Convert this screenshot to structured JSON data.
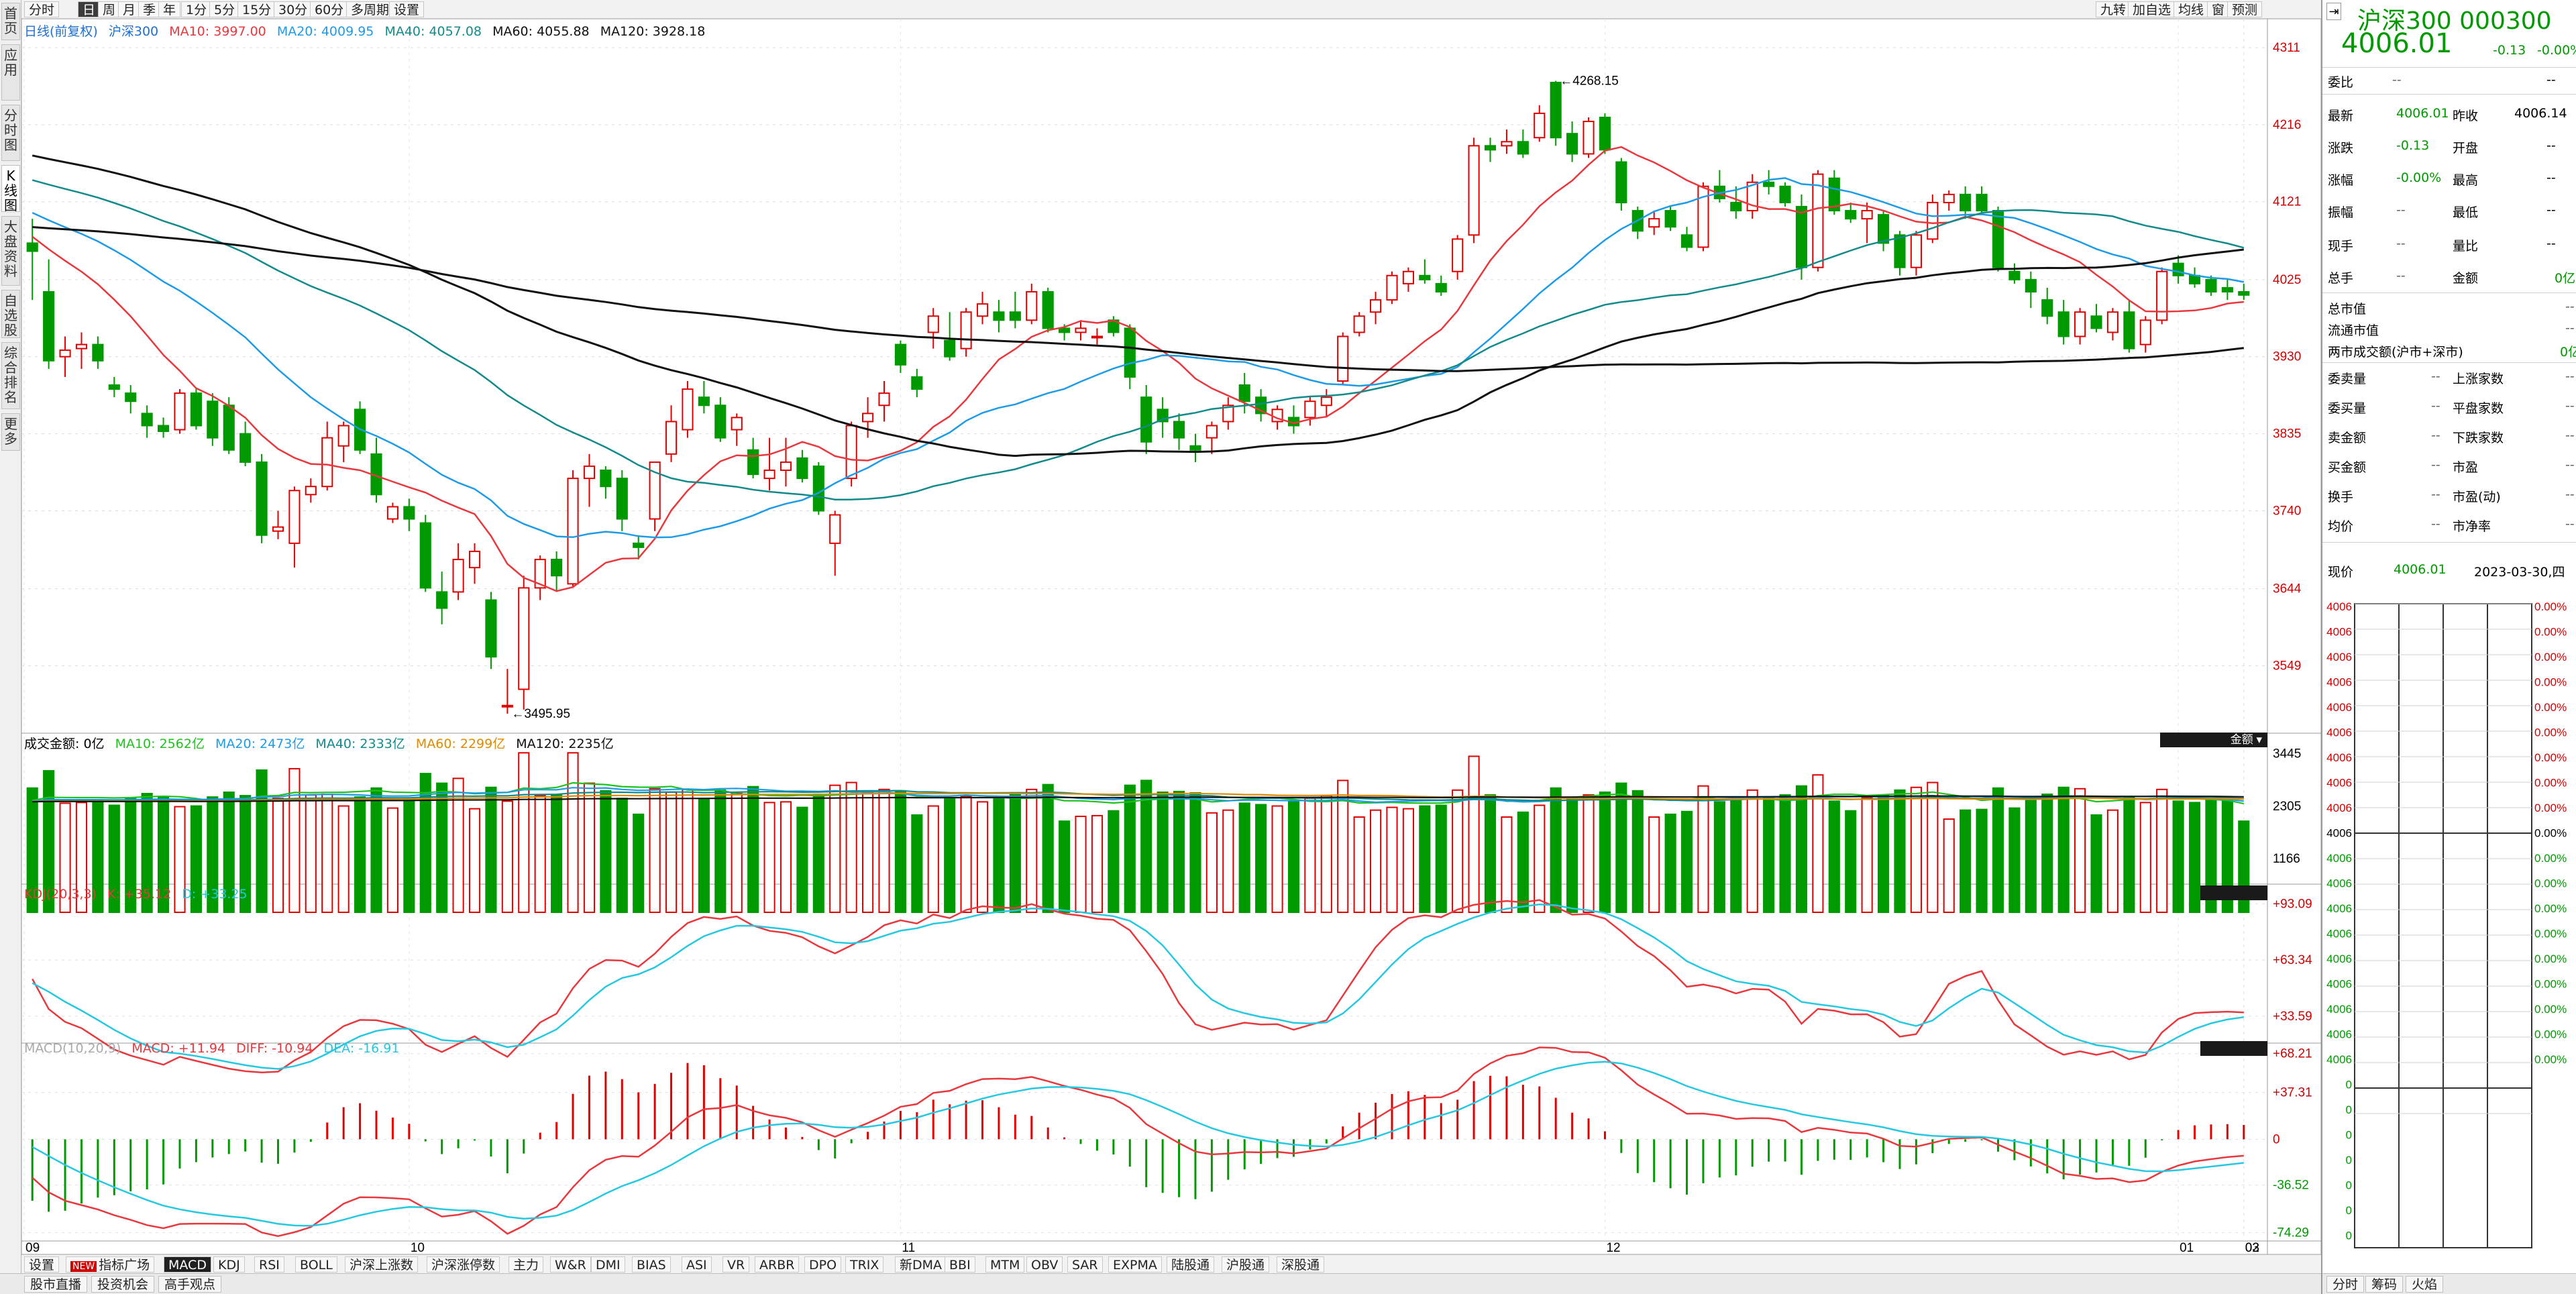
{
  "left_nav": [
    "首页",
    "应用",
    "分时图",
    "K线图",
    "大盘资料",
    "自选股",
    "综合排名",
    "更多"
  ],
  "toolbar": {
    "periods": [
      "分时",
      "日",
      "周",
      "月",
      "季",
      "年",
      "1分",
      "5分",
      "15分",
      "30分",
      "60分",
      "多周期",
      "设置"
    ],
    "active_period": "日",
    "right_buttons": [
      "九转",
      "加自选",
      "均线",
      "窗",
      "预测"
    ]
  },
  "main_legend": {
    "period_label": "日线(前复权)",
    "name": "沪深300",
    "ma10": "MA10: 3997.00",
    "ma20": "MA20: 4009.95",
    "ma40": "MA40: 4057.08",
    "ma60": "MA60: 4055.88",
    "ma120": "MA120: 3928.18"
  },
  "price_axis": [
    "4311",
    "4216",
    "4121",
    "4025",
    "3930",
    "3835",
    "3740",
    "3644",
    "3549"
  ],
  "annotations": {
    "high": "4268.15",
    "low": "3495.95"
  },
  "date_axis": [
    "09",
    "10",
    "11",
    "12",
    "01",
    "02",
    "03"
  ],
  "volume_legend": {
    "label": "成交金额: 0亿",
    "ma10": "MA10: 2562亿",
    "ma20": "MA20: 2473亿",
    "ma40": "MA40: 2333亿",
    "ma60": "MA60: 2299亿",
    "ma120": "MA120: 2235亿",
    "selector": "金额"
  },
  "volume_axis": [
    "3445",
    "2305",
    "1166"
  ],
  "kdj_legend": {
    "label": "KDJ(20,3,3)",
    "k": "K: +35.12",
    "d": "D: +33.25"
  },
  "kdj_axis": [
    "+93.09",
    "+63.34",
    "+33.59"
  ],
  "macd_legend": {
    "label": "MACD(10,20,9)",
    "macd": "MACD: +11.94",
    "diff": "DIFF: -10.94",
    "dea": "DEA: -16.91"
  },
  "macd_axis": [
    "+68.21",
    "+37.31",
    "0",
    "-36.52",
    "-74.29"
  ],
  "indicator_tabs": [
    "设置",
    "指标广场",
    "MACD",
    "KDJ",
    "RSI",
    "BOLL",
    "沪深上涨数",
    "沪深涨停数",
    "主力",
    "W&R",
    "DMI",
    "BIAS",
    "ASI",
    "VR",
    "ARBR",
    "DPO",
    "TRIX",
    "新DMA",
    "BBI",
    "MTM",
    "OBV",
    "SAR",
    "EXPMA",
    "陆股通",
    "沪股通",
    "深股通"
  ],
  "indicator_new_badge": "NEW",
  "active_indicator": "MACD",
  "bottom_tabs": [
    "股市直播",
    "投资机会",
    "高手观点"
  ],
  "quote": {
    "title": "沪深300 000300",
    "price": "4006.01",
    "change": "-0.13",
    "change_pct": "-0.00%",
    "rows_left": [
      {
        "label": "委比",
        "value": "--"
      },
      {
        "label": "最新",
        "value": "4006.01"
      },
      {
        "label": "涨跌",
        "value": "-0.13"
      },
      {
        "label": "涨幅",
        "value": "-0.00%"
      },
      {
        "label": "振幅",
        "value": "--"
      },
      {
        "label": "现手",
        "value": "--"
      },
      {
        "label": "总手",
        "value": "--"
      }
    ],
    "rows_right": [
      {
        "label": "",
        "value": "--"
      },
      {
        "label": "昨收",
        "value": "4006.14"
      },
      {
        "label": "开盘",
        "value": "--"
      },
      {
        "label": "最高",
        "value": "--"
      },
      {
        "label": "最低",
        "value": "--"
      },
      {
        "label": "量比",
        "value": "--"
      },
      {
        "label": "金额",
        "value": "0亿"
      }
    ],
    "cap_rows": [
      {
        "label": "总市值",
        "value": "--"
      },
      {
        "label": "流通市值",
        "value": "--"
      },
      {
        "label": "两市成交额(沪市+深市)",
        "value": "0亿"
      }
    ],
    "stat_left": [
      {
        "label": "委卖量",
        "value": "--"
      },
      {
        "label": "委买量",
        "value": "--"
      },
      {
        "label": "卖金额",
        "value": "--"
      },
      {
        "label": "买金额",
        "value": "--"
      },
      {
        "label": "换手",
        "value": "--"
      },
      {
        "label": "均价",
        "value": "--"
      }
    ],
    "stat_right": [
      {
        "label": "上涨家数",
        "value": "--"
      },
      {
        "label": "平盘家数",
        "value": "--"
      },
      {
        "label": "下跌家数",
        "value": "--"
      },
      {
        "label": "市盈",
        "value": "--"
      },
      {
        "label": "市盈(动)",
        "value": "--"
      },
      {
        "label": "市净率",
        "value": "--"
      }
    ],
    "now_label": "现价",
    "now_price": "4006.01",
    "now_date": "2023-03-30,四",
    "mini_price": "4006",
    "mini_pct": "0.00%",
    "mini_zero": "0",
    "panel_tabs": [
      "分时",
      "筹码",
      "火焰"
    ]
  },
  "colors": {
    "up": "#e00000",
    "down": "#009900",
    "ma10": "#e8383d",
    "ma20": "#1e9be6",
    "ma40": "#138a8a",
    "ma60": "#111111",
    "ma120": "#111111",
    "k": "#e8383d",
    "d": "#25c8e0"
  },
  "chart_data": {
    "type": "candlestick",
    "price_range": [
      3470,
      4330
    ],
    "candles": [
      [
        4070,
        4100,
        4000,
        4060
      ],
      [
        4010,
        4050,
        3915,
        3925
      ],
      [
        3930,
        3955,
        3905,
        3938
      ],
      [
        3940,
        3960,
        3915,
        3945
      ],
      [
        3945,
        3955,
        3915,
        3925
      ],
      [
        3895,
        3905,
        3880,
        3890
      ],
      [
        3885,
        3895,
        3860,
        3875
      ],
      [
        3860,
        3870,
        3830,
        3845
      ],
      [
        3845,
        3855,
        3830,
        3838
      ],
      [
        3840,
        3890,
        3835,
        3885
      ],
      [
        3885,
        3890,
        3840,
        3845
      ],
      [
        3875,
        3885,
        3820,
        3830
      ],
      [
        3870,
        3880,
        3810,
        3815
      ],
      [
        3835,
        3850,
        3795,
        3800
      ],
      [
        3800,
        3810,
        3700,
        3710
      ],
      [
        3715,
        3740,
        3705,
        3720
      ],
      [
        3700,
        3770,
        3670,
        3765
      ],
      [
        3760,
        3780,
        3750,
        3770
      ],
      [
        3770,
        3850,
        3765,
        3830
      ],
      [
        3820,
        3850,
        3800,
        3845
      ],
      [
        3865,
        3875,
        3810,
        3815
      ],
      [
        3810,
        3830,
        3750,
        3760
      ],
      [
        3730,
        3750,
        3725,
        3745
      ],
      [
        3745,
        3755,
        3715,
        3730
      ],
      [
        3725,
        3735,
        3640,
        3645
      ],
      [
        3640,
        3665,
        3600,
        3620
      ],
      [
        3640,
        3700,
        3630,
        3680
      ],
      [
        3670,
        3700,
        3650,
        3690
      ],
      [
        3630,
        3640,
        3545,
        3560
      ],
      [
        3500,
        3545,
        3490,
        3500
      ],
      [
        3520,
        3660,
        3495,
        3645
      ],
      [
        3645,
        3685,
        3630,
        3680
      ],
      [
        3680,
        3690,
        3640,
        3660
      ],
      [
        3650,
        3790,
        3645,
        3780
      ],
      [
        3780,
        3810,
        3745,
        3795
      ],
      [
        3790,
        3795,
        3755,
        3770
      ],
      [
        3780,
        3790,
        3715,
        3730
      ],
      [
        3700,
        3710,
        3680,
        3695
      ],
      [
        3730,
        3800,
        3715,
        3800
      ],
      [
        3810,
        3870,
        3800,
        3850
      ],
      [
        3840,
        3900,
        3830,
        3890
      ],
      [
        3880,
        3900,
        3860,
        3870
      ],
      [
        3870,
        3880,
        3825,
        3830
      ],
      [
        3840,
        3860,
        3820,
        3855
      ],
      [
        3815,
        3830,
        3780,
        3785
      ],
      [
        3780,
        3830,
        3765,
        3790
      ],
      [
        3790,
        3830,
        3770,
        3800
      ],
      [
        3805,
        3815,
        3775,
        3780
      ],
      [
        3795,
        3800,
        3735,
        3740
      ],
      [
        3700,
        3740,
        3660,
        3735
      ],
      [
        3780,
        3850,
        3770,
        3845
      ],
      [
        3850,
        3880,
        3830,
        3860
      ],
      [
        3870,
        3900,
        3850,
        3885
      ],
      [
        3945,
        3950,
        3910,
        3920
      ],
      [
        3905,
        3915,
        3880,
        3890
      ],
      [
        3960,
        3990,
        3940,
        3980
      ],
      [
        3950,
        3985,
        3925,
        3930
      ],
      [
        3940,
        3990,
        3930,
        3985
      ],
      [
        3980,
        4010,
        3970,
        3995
      ],
      [
        3985,
        4000,
        3960,
        3975
      ],
      [
        3985,
        4010,
        3965,
        3975
      ],
      [
        3975,
        4020,
        3970,
        4010
      ],
      [
        4010,
        4015,
        3960,
        3965
      ],
      [
        3965,
        3970,
        3950,
        3960
      ],
      [
        3960,
        3975,
        3950,
        3965
      ],
      [
        3955,
        3965,
        3945,
        3955
      ],
      [
        3975,
        3980,
        3955,
        3960
      ],
      [
        3965,
        3970,
        3890,
        3905
      ],
      [
        3880,
        3895,
        3810,
        3825
      ],
      [
        3865,
        3880,
        3830,
        3850
      ],
      [
        3850,
        3860,
        3815,
        3830
      ],
      [
        3820,
        3835,
        3800,
        3815
      ],
      [
        3830,
        3850,
        3810,
        3845
      ],
      [
        3850,
        3880,
        3840,
        3870
      ],
      [
        3895,
        3910,
        3860,
        3875
      ],
      [
        3880,
        3890,
        3850,
        3860
      ],
      [
        3850,
        3870,
        3840,
        3865
      ],
      [
        3855,
        3870,
        3835,
        3845
      ],
      [
        3855,
        3880,
        3845,
        3875
      ],
      [
        3870,
        3890,
        3855,
        3880
      ],
      [
        3900,
        3960,
        3895,
        3955
      ],
      [
        3960,
        3985,
        3955,
        3980
      ],
      [
        3985,
        4010,
        3970,
        4000
      ],
      [
        4000,
        4035,
        3995,
        4030
      ],
      [
        4020,
        4040,
        4010,
        4035
      ],
      [
        4030,
        4050,
        4020,
        4025
      ],
      [
        4020,
        4030,
        4005,
        4010
      ],
      [
        4035,
        4080,
        4025,
        4075
      ],
      [
        4080,
        4200,
        4070,
        4190
      ],
      [
        4190,
        4200,
        4170,
        4185
      ],
      [
        4190,
        4210,
        4180,
        4195
      ],
      [
        4195,
        4210,
        4175,
        4180
      ],
      [
        4200,
        4240,
        4195,
        4230
      ],
      [
        4268,
        4270,
        4190,
        4200
      ],
      [
        4205,
        4220,
        4170,
        4180
      ],
      [
        4180,
        4225,
        4175,
        4220
      ],
      [
        4225,
        4230,
        4180,
        4185
      ],
      [
        4170,
        4175,
        4110,
        4120
      ],
      [
        4110,
        4115,
        4075,
        4085
      ],
      [
        4090,
        4110,
        4080,
        4100
      ],
      [
        4110,
        4115,
        4085,
        4090
      ],
      [
        4080,
        4090,
        4060,
        4065
      ],
      [
        4065,
        4145,
        4060,
        4140
      ],
      [
        4140,
        4160,
        4120,
        4125
      ],
      [
        4120,
        4140,
        4100,
        4110
      ],
      [
        4110,
        4155,
        4100,
        4145
      ],
      [
        4145,
        4160,
        4130,
        4140
      ],
      [
        4140,
        4145,
        4115,
        4120
      ],
      [
        4115,
        4130,
        4025,
        4040
      ],
      [
        4040,
        4160,
        4035,
        4155
      ],
      [
        4150,
        4160,
        4105,
        4110
      ],
      [
        4110,
        4120,
        4095,
        4100
      ],
      [
        4100,
        4120,
        4070,
        4110
      ],
      [
        4105,
        4110,
        4060,
        4070
      ],
      [
        4080,
        4085,
        4030,
        4040
      ],
      [
        4040,
        4085,
        4030,
        4080
      ],
      [
        4075,
        4130,
        4070,
        4120
      ],
      [
        4120,
        4135,
        4110,
        4130
      ],
      [
        4130,
        4140,
        4100,
        4110
      ],
      [
        4130,
        4140,
        4105,
        4110
      ],
      [
        4110,
        4115,
        4035,
        4040
      ],
      [
        4035,
        4045,
        4020,
        4025
      ],
      [
        4025,
        4035,
        3990,
        4010
      ],
      [
        4000,
        4015,
        3970,
        3980
      ],
      [
        3985,
        4000,
        3945,
        3955
      ],
      [
        3955,
        3990,
        3945,
        3985
      ],
      [
        3980,
        3995,
        3960,
        3965
      ],
      [
        3960,
        3990,
        3950,
        3985
      ],
      [
        3985,
        4000,
        3935,
        3940
      ],
      [
        3945,
        3980,
        3935,
        3975
      ],
      [
        3975,
        4040,
        3970,
        4035
      ],
      [
        4045,
        4055,
        4020,
        4030
      ],
      [
        4030,
        4040,
        4015,
        4020
      ],
      [
        4025,
        4030,
        4005,
        4010
      ],
      [
        4015,
        4025,
        4000,
        4010
      ],
      [
        4010,
        4020,
        4000,
        4006
      ]
    ],
    "volume_range": [
      0,
      3600
    ]
  }
}
